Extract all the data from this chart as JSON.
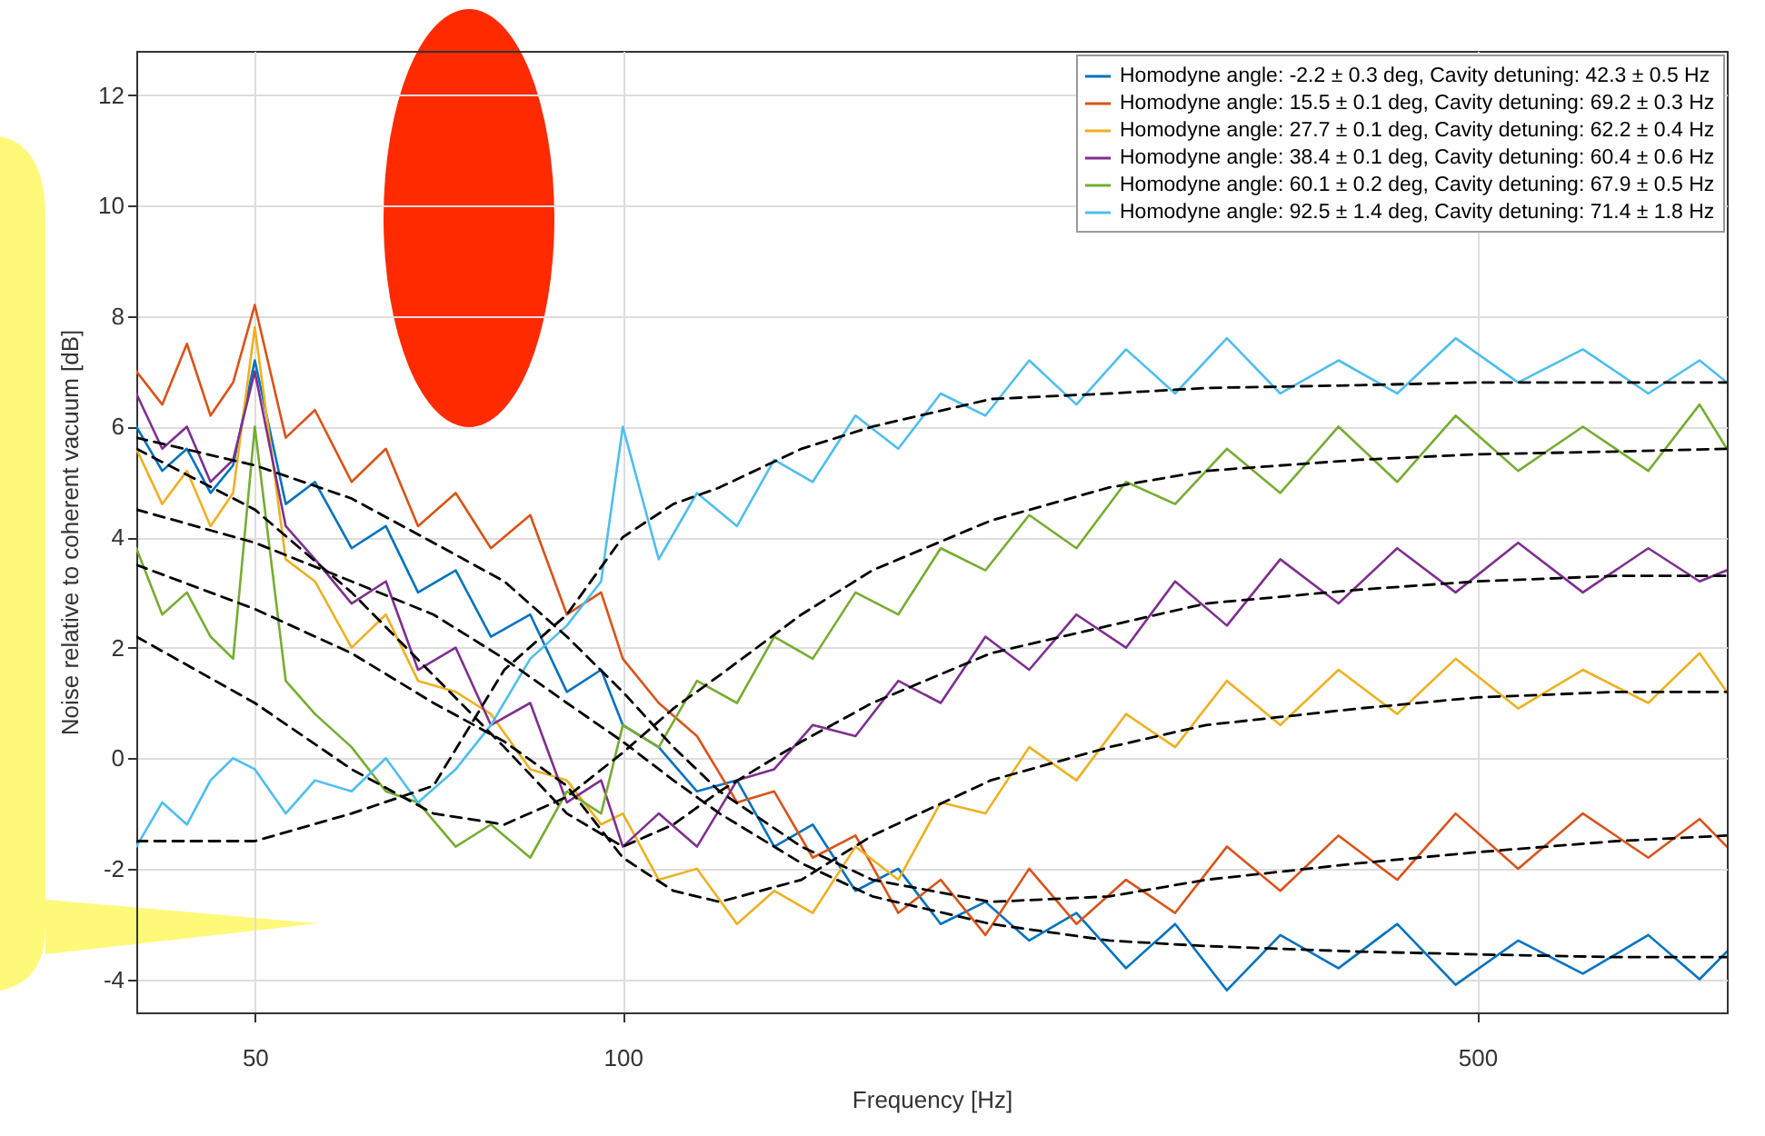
{
  "chart_data": {
    "type": "line",
    "xlabel": "Frequency [Hz]",
    "ylabel": "Noise relative to coherent vacuum [dB]",
    "log": "x",
    "grid": true,
    "legend": "top right",
    "xlim": [
      40,
      800
    ],
    "xticks": [
      50,
      100,
      500
    ],
    "ylim": [
      -4.6,
      12.8
    ],
    "yticks": [
      -4,
      -2,
      0,
      2,
      4,
      6,
      8,
      10,
      12
    ],
    "x": [
      40,
      42,
      44,
      46,
      48,
      50,
      53,
      56,
      60,
      64,
      68,
      73,
      78,
      84,
      90,
      96,
      100,
      107,
      115,
      124,
      133,
      143,
      155,
      168,
      182,
      198,
      215,
      235,
      258,
      283,
      312,
      345,
      385,
      430,
      480,
      540,
      610,
      690,
      760,
      800
    ],
    "series": [
      {
        "name": "Homodyne angle: -2.2 ± 0.3 deg, Cavity detuning: 42.3 ± 0.5 Hz",
        "color": "#0072bd",
        "values": [
          6.0,
          5.2,
          5.6,
          4.8,
          5.3,
          7.2,
          4.6,
          5.0,
          3.8,
          4.2,
          3.0,
          3.4,
          2.2,
          2.6,
          1.2,
          1.6,
          0.6,
          0.2,
          -0.6,
          -0.4,
          -1.6,
          -1.2,
          -2.4,
          -2.0,
          -3.0,
          -2.6,
          -3.3,
          -2.8,
          -3.8,
          -3.0,
          -4.2,
          -3.2,
          -3.8,
          -3.0,
          -4.1,
          -3.3,
          -3.9,
          -3.2,
          -4.0,
          -3.5
        ]
      },
      {
        "name": "Homodyne angle: 15.5 ± 0.1 deg, Cavity detuning: 69.2 ± 0.3 Hz",
        "color": "#d95319",
        "values": [
          7.0,
          6.4,
          7.5,
          6.2,
          6.8,
          8.2,
          5.8,
          6.3,
          5.0,
          5.6,
          4.2,
          4.8,
          3.8,
          4.4,
          2.6,
          3.0,
          1.8,
          1.0,
          0.4,
          -0.8,
          -0.6,
          -1.8,
          -1.4,
          -2.8,
          -2.2,
          -3.2,
          -2.0,
          -3.0,
          -2.2,
          -2.8,
          -1.6,
          -2.4,
          -1.4,
          -2.2,
          -1.0,
          -2.0,
          -1.0,
          -1.8,
          -1.1,
          -1.6
        ]
      },
      {
        "name": "Homodyne angle: 27.7 ± 0.1 deg, Cavity detuning: 62.2 ± 0.4 Hz",
        "color": "#edb120",
        "values": [
          5.6,
          4.6,
          5.2,
          4.2,
          4.8,
          7.8,
          3.6,
          3.2,
          2.0,
          2.6,
          1.4,
          1.2,
          0.8,
          -0.2,
          -0.4,
          -1.2,
          -1.0,
          -2.2,
          -2.0,
          -3.0,
          -2.4,
          -2.8,
          -1.6,
          -2.2,
          -0.8,
          -1.0,
          0.2,
          -0.4,
          0.8,
          0.2,
          1.4,
          0.6,
          1.6,
          0.8,
          1.8,
          0.9,
          1.6,
          1.0,
          1.9,
          1.2
        ]
      },
      {
        "name": "Homodyne angle: 38.4 ± 0.1 deg, Cavity detuning: 60.4 ± 0.6 Hz",
        "color": "#7e2f8e",
        "values": [
          6.6,
          5.6,
          6.0,
          5.0,
          5.4,
          7.0,
          4.2,
          3.6,
          2.8,
          3.2,
          1.6,
          2.0,
          0.6,
          1.0,
          -0.8,
          -0.4,
          -1.6,
          -1.0,
          -1.6,
          -0.4,
          -0.2,
          0.6,
          0.4,
          1.4,
          1.0,
          2.2,
          1.6,
          2.6,
          2.0,
          3.2,
          2.4,
          3.6,
          2.8,
          3.8,
          3.0,
          3.9,
          3.0,
          3.8,
          3.2,
          3.4
        ]
      },
      {
        "name": "Homodyne angle: 60.1 ± 0.2 deg, Cavity detuning: 67.9 ± 0.5 Hz",
        "color": "#77ac30",
        "values": [
          3.8,
          2.6,
          3.0,
          2.2,
          1.8,
          6.0,
          1.4,
          0.8,
          0.2,
          -0.6,
          -0.8,
          -1.6,
          -1.2,
          -1.8,
          -0.6,
          -1.0,
          0.6,
          0.2,
          1.4,
          1.0,
          2.2,
          1.8,
          3.0,
          2.6,
          3.8,
          3.4,
          4.4,
          3.8,
          5.0,
          4.6,
          5.6,
          4.8,
          6.0,
          5.0,
          6.2,
          5.2,
          6.0,
          5.2,
          6.4,
          5.6
        ]
      },
      {
        "name": "Homodyne angle: 92.5 ± 1.4 deg, Cavity detuning: 71.4 ± 1.8 Hz",
        "color": "#4dbeee",
        "values": [
          -1.6,
          -0.8,
          -1.2,
          -0.4,
          0.0,
          -0.2,
          -1.0,
          -0.4,
          -0.6,
          0.0,
          -0.8,
          -0.2,
          0.6,
          1.8,
          2.4,
          3.2,
          6.0,
          3.6,
          4.8,
          4.2,
          5.4,
          5.0,
          6.2,
          5.6,
          6.6,
          6.2,
          7.2,
          6.4,
          7.4,
          6.6,
          7.6,
          6.6,
          7.2,
          6.6,
          7.6,
          6.8,
          7.4,
          6.6,
          7.2,
          6.8
        ]
      },
      {
        "type": "line",
        "line_style": "dashed",
        "color": "#000000",
        "x": [
          40,
          50,
          60,
          70,
          80,
          90,
          100,
          110,
          120,
          140,
          160,
          200,
          250,
          300,
          400,
          500,
          650,
          800
        ],
        "values": [
          4.5,
          3.9,
          3.2,
          2.6,
          1.8,
          1.0,
          0.3,
          -0.4,
          -1.0,
          -1.9,
          -2.5,
          -3.0,
          -3.3,
          -3.4,
          -3.5,
          -3.55,
          -3.6,
          -3.6
        ]
      },
      {
        "type": "line",
        "line_style": "dashed",
        "color": "#000000",
        "x": [
          40,
          50,
          60,
          70,
          80,
          90,
          100,
          110,
          120,
          140,
          160,
          200,
          250,
          300,
          400,
          500,
          650,
          800
        ],
        "values": [
          5.8,
          5.3,
          4.7,
          3.9,
          3.2,
          2.2,
          1.2,
          0.2,
          -0.6,
          -1.6,
          -2.2,
          -2.6,
          -2.5,
          -2.2,
          -1.9,
          -1.7,
          -1.5,
          -1.4
        ]
      },
      {
        "type": "line",
        "line_style": "dashed",
        "color": "#000000",
        "x": [
          40,
          50,
          60,
          70,
          80,
          90,
          100,
          110,
          120,
          140,
          160,
          200,
          250,
          300,
          400,
          500,
          650,
          800
        ],
        "values": [
          3.5,
          2.7,
          1.9,
          1.0,
          0.3,
          -0.5,
          -1.8,
          -2.4,
          -2.6,
          -2.2,
          -1.4,
          -0.4,
          0.2,
          0.6,
          0.9,
          1.1,
          1.2,
          1.2
        ]
      },
      {
        "type": "line",
        "line_style": "dashed",
        "color": "#000000",
        "x": [
          40,
          50,
          60,
          70,
          80,
          90,
          100,
          110,
          120,
          140,
          160,
          200,
          250,
          300,
          400,
          500,
          650,
          800
        ],
        "values": [
          5.6,
          4.5,
          3.0,
          1.5,
          0.2,
          -1.0,
          -1.6,
          -1.2,
          -0.6,
          0.3,
          1.0,
          1.9,
          2.4,
          2.8,
          3.05,
          3.2,
          3.3,
          3.3
        ]
      },
      {
        "type": "line",
        "line_style": "dashed",
        "color": "#000000",
        "x": [
          40,
          50,
          60,
          70,
          80,
          90,
          100,
          110,
          120,
          140,
          160,
          200,
          250,
          300,
          400,
          500,
          650,
          800
        ],
        "values": [
          2.2,
          1.0,
          -0.2,
          -1.0,
          -1.2,
          -0.7,
          0.1,
          0.9,
          1.5,
          2.6,
          3.4,
          4.3,
          4.9,
          5.2,
          5.4,
          5.5,
          5.55,
          5.6
        ]
      },
      {
        "type": "line",
        "line_style": "dashed",
        "color": "#000000",
        "x": [
          40,
          50,
          60,
          70,
          80,
          90,
          100,
          110,
          120,
          140,
          160,
          200,
          250,
          300,
          400,
          500,
          650,
          800
        ],
        "values": [
          -1.5,
          -1.5,
          -1.0,
          -0.5,
          1.6,
          2.6,
          4.0,
          4.6,
          4.9,
          5.6,
          6.0,
          6.5,
          6.6,
          6.7,
          6.75,
          6.8,
          6.8,
          6.8
        ]
      }
    ]
  }
}
